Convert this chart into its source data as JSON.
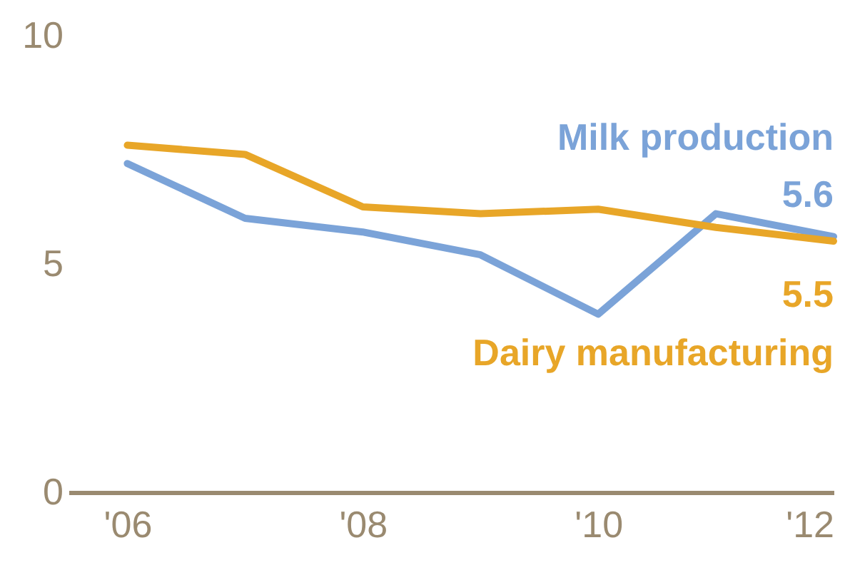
{
  "chart_data": {
    "type": "line",
    "x": [
      2006,
      2007,
      2008,
      2009,
      2010,
      2011,
      2012
    ],
    "series": [
      {
        "name": "Milk production",
        "color": "#7ba3d8",
        "values": [
          7.2,
          6.0,
          5.7,
          5.2,
          3.9,
          6.1,
          5.6
        ],
        "value_labels": [
          null,
          null,
          null,
          null,
          null,
          null,
          "5.6"
        ]
      },
      {
        "name": "Dairy manufacturing",
        "color": "#e8a628",
        "values": [
          7.6,
          7.4,
          6.25,
          6.1,
          6.2,
          5.8,
          5.5
        ],
        "value_labels": [
          null,
          null,
          null,
          null,
          null,
          null,
          "5.5"
        ]
      }
    ],
    "xlim": [
      2005.5,
      2012
    ],
    "xticks": [
      {
        "value": 2006,
        "label": "'06"
      },
      {
        "value": 2008,
        "label": "'08"
      },
      {
        "value": 2010,
        "label": "'10"
      },
      {
        "value": 2012,
        "label": "'12"
      }
    ],
    "ylim": [
      0,
      10
    ],
    "yticks": [
      0,
      5,
      10
    ],
    "grid": false,
    "legend": false,
    "marker": "none",
    "line_style": "solid"
  }
}
